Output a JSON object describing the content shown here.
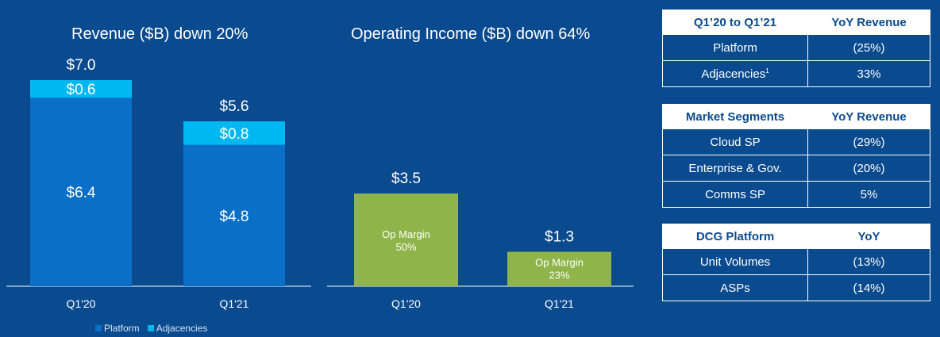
{
  "chart_data": [
    {
      "type": "bar",
      "title": "Revenue ($B) down 20%",
      "categories": [
        "Q1'20",
        "Q1'21"
      ],
      "stacked": true,
      "series": [
        {
          "name": "Platform",
          "values": [
            6.4,
            4.8
          ],
          "labels": [
            "$6.4",
            "$4.8"
          ],
          "color": "#0a6fc7"
        },
        {
          "name": "Adjacencies",
          "values": [
            0.6,
            0.8
          ],
          "labels": [
            "$0.6",
            "$0.8"
          ],
          "color": "#00b8f1"
        }
      ],
      "totals": [
        7.0,
        5.6
      ],
      "total_labels": [
        "$7.0",
        "$5.6"
      ],
      "ylim": [
        0,
        7.0
      ]
    },
    {
      "type": "bar",
      "title": "Operating Income ($B) down 64%",
      "categories": [
        "Q1'20",
        "Q1'21"
      ],
      "values": [
        3.5,
        1.3
      ],
      "value_labels": [
        "$3.5",
        "$1.3"
      ],
      "annotations": [
        {
          "line1": "Op Margin",
          "line2": "50%"
        },
        {
          "line1": "Op Margin",
          "line2": "23%"
        }
      ],
      "color": "#8fb44a",
      "ylim": [
        0,
        7.0
      ]
    }
  ],
  "legend": {
    "items": [
      {
        "label": "Platform",
        "color": "#0a6fc7"
      },
      {
        "label": "Adjacencies",
        "color": "#00b8f1"
      }
    ]
  },
  "tables": [
    {
      "headers": [
        "Q1’20 to Q1’21",
        "YoY Revenue"
      ],
      "rows": [
        [
          "Platform",
          "(25%)"
        ],
        [
          "Adjacencies",
          "33%"
        ]
      ],
      "footnote_row": 1,
      "footnote": "1"
    },
    {
      "headers": [
        "Market Segments",
        "YoY Revenue"
      ],
      "rows": [
        [
          "Cloud SP",
          "(29%)"
        ],
        [
          "Enterprise & Gov.",
          "(20%)"
        ],
        [
          "Comms SP",
          "5%"
        ]
      ]
    },
    {
      "headers": [
        "DCG Platform",
        "YoY"
      ],
      "rows": [
        [
          "Unit Volumes",
          "(13%)"
        ],
        [
          "ASPs",
          "(14%)"
        ]
      ]
    }
  ]
}
